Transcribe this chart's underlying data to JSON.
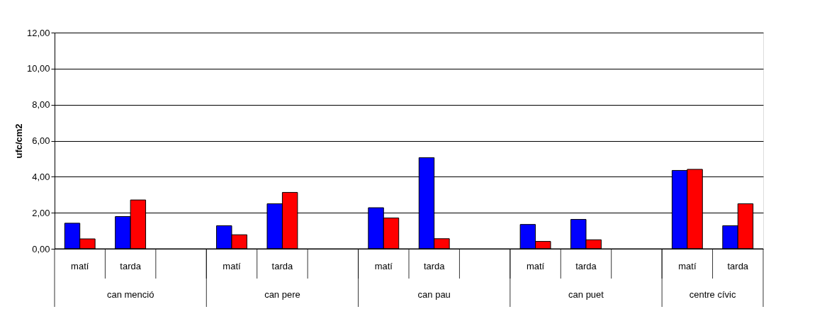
{
  "chart_data": {
    "type": "bar",
    "ylabel": "ufc/cm2",
    "categories": [
      "matí",
      "tarda",
      null,
      "matí",
      "tarda",
      null,
      "matí",
      "tarda",
      null,
      "matí",
      "tarda",
      null,
      "matí",
      "tarda"
    ],
    "series": [
      {
        "color": "#0000ff",
        "values": [
          1.42,
          1.79,
          null,
          1.28,
          2.5,
          null,
          2.28,
          5.06,
          null,
          1.35,
          1.63,
          null,
          4.35,
          1.28
        ]
      },
      {
        "color": "#ff0000",
        "values": [
          0.55,
          2.71,
          null,
          0.78,
          3.13,
          null,
          1.71,
          0.56,
          null,
          0.41,
          0.5,
          null,
          4.41,
          2.5
        ]
      }
    ],
    "annotations": [
      "can menció",
      "can pere",
      "can pau",
      "can puet",
      "centre cívic"
    ],
    "ylim": [
      0,
      12
    ],
    "yticks": [
      {
        "value": 0,
        "label": "0,00"
      },
      {
        "value": 2,
        "label": "2,00"
      },
      {
        "value": 4,
        "label": "4,00"
      },
      {
        "value": 6,
        "label": "6,00"
      },
      {
        "value": 8,
        "label": "8,00"
      },
      {
        "value": 10,
        "label": "10,00"
      },
      {
        "value": 12,
        "label": "12,00"
      }
    ],
    "grid": true,
    "legend": false
  }
}
